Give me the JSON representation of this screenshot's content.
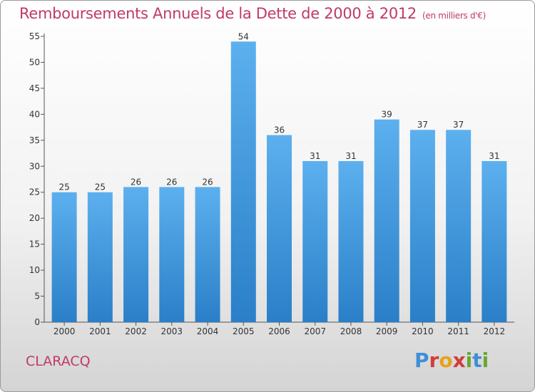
{
  "header": {
    "title": "Remboursements Annuels de la Dette de 2000 à 2012",
    "unit": "(en milliers d'€)"
  },
  "footer": {
    "commune": "CLARACQ",
    "logo": [
      "P",
      "r",
      "o",
      "x",
      "i",
      "t",
      "i"
    ]
  },
  "chart_data": {
    "type": "bar",
    "title": "Remboursements Annuels de la Dette de 2000 à 2012",
    "subtitle": "(en milliers d'€)",
    "xlabel": "",
    "ylabel": "",
    "ylim": [
      0,
      55
    ],
    "yticks": [
      0,
      5,
      10,
      15,
      20,
      25,
      30,
      35,
      40,
      45,
      50,
      55
    ],
    "grid": false,
    "categories": [
      "2000",
      "2001",
      "2002",
      "2003",
      "2004",
      "2005",
      "2006",
      "2007",
      "2008",
      "2009",
      "2010",
      "2011",
      "2012"
    ],
    "values": [
      25,
      25,
      26,
      26,
      26,
      54,
      36,
      31,
      31,
      39,
      37,
      37,
      31
    ],
    "bar_color": "#4a9fe0"
  }
}
